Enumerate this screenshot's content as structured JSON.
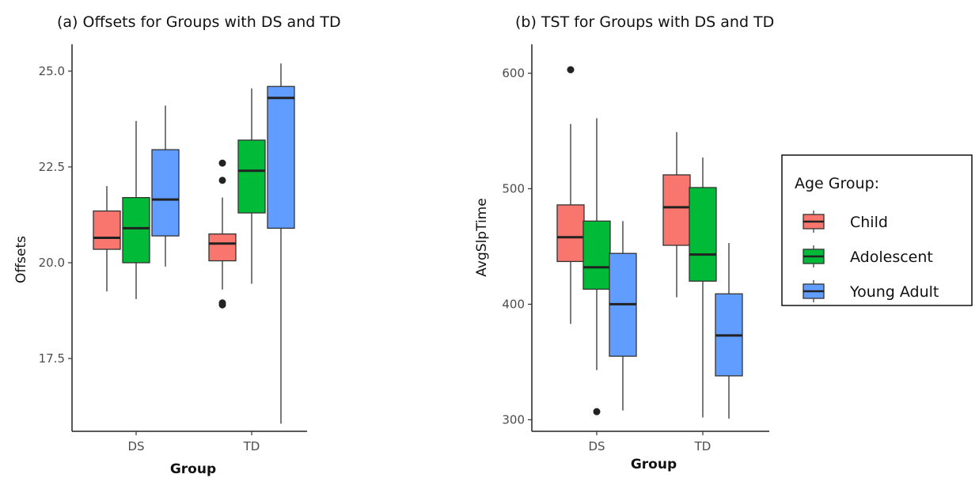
{
  "legend": {
    "title": "Age Group:",
    "entries": [
      {
        "name": "Child",
        "color": "#f8766d"
      },
      {
        "name": "Adolescent",
        "color": "#00ba38"
      },
      {
        "name": "Young Adult",
        "color": "#619cff"
      }
    ]
  },
  "chart_data": [
    {
      "type": "boxplot",
      "title": "(a) Offsets for Groups with DS and TD",
      "xlabel": "Group",
      "ylabel": "Offsets",
      "categories": [
        "DS",
        "TD"
      ],
      "ylim": [
        15.6,
        25.7
      ],
      "yticks": [
        17.5,
        20.0,
        22.5,
        25.0
      ],
      "ytick_labels": [
        "17.5",
        "20.0",
        "22.5",
        "25.0"
      ],
      "series": [
        {
          "name": "Child",
          "boxes": [
            {
              "category": "DS",
              "min": 19.25,
              "q1": 20.35,
              "median": 20.65,
              "q3": 21.35,
              "max": 22.0,
              "outliers": []
            },
            {
              "category": "TD",
              "min": 19.3,
              "q1": 20.05,
              "median": 20.5,
              "q3": 20.75,
              "max": 21.7,
              "outliers": [
                22.6,
                22.15,
                18.95,
                18.9
              ]
            }
          ]
        },
        {
          "name": "Adolescent",
          "boxes": [
            {
              "category": "DS",
              "min": 19.05,
              "q1": 20.0,
              "median": 20.9,
              "q3": 21.7,
              "max": 23.7,
              "outliers": []
            },
            {
              "category": "TD",
              "min": 19.45,
              "q1": 21.3,
              "median": 22.4,
              "q3": 23.2,
              "max": 24.55,
              "outliers": []
            }
          ]
        },
        {
          "name": "Young Adult",
          "boxes": [
            {
              "category": "DS",
              "min": 19.9,
              "q1": 20.7,
              "median": 21.65,
              "q3": 22.95,
              "max": 24.1,
              "outliers": []
            },
            {
              "category": "TD",
              "min": 15.8,
              "q1": 20.9,
              "median": 24.3,
              "q3": 24.6,
              "max": 25.2,
              "outliers": []
            }
          ]
        }
      ]
    },
    {
      "type": "boxplot",
      "title": "(b) TST for Groups with DS and TD",
      "xlabel": "Group",
      "ylabel": "AvgSlpTime",
      "categories": [
        "DS",
        "TD"
      ],
      "ylim": [
        290,
        625
      ],
      "yticks": [
        300,
        400,
        500,
        600
      ],
      "ytick_labels": [
        "300",
        "400",
        "500",
        "600"
      ],
      "series": [
        {
          "name": "Child",
          "boxes": [
            {
              "category": "DS",
              "min": 383,
              "q1": 437,
              "median": 458,
              "q3": 486,
              "max": 556,
              "outliers": [
                603
              ]
            },
            {
              "category": "TD",
              "min": 406,
              "q1": 451,
              "median": 484,
              "q3": 512,
              "max": 549,
              "outliers": []
            }
          ]
        },
        {
          "name": "Adolescent",
          "boxes": [
            {
              "category": "DS",
              "min": 343,
              "q1": 413,
              "median": 432,
              "q3": 472,
              "max": 561,
              "outliers": [
                307
              ]
            },
            {
              "category": "TD",
              "min": 302,
              "q1": 420,
              "median": 443,
              "q3": 501,
              "max": 527,
              "outliers": []
            }
          ]
        },
        {
          "name": "Young Adult",
          "boxes": [
            {
              "category": "DS",
              "min": 308,
              "q1": 355,
              "median": 400,
              "q3": 444,
              "max": 472,
              "outliers": []
            },
            {
              "category": "TD",
              "min": 301,
              "q1": 338,
              "median": 373,
              "q3": 409,
              "max": 453,
              "outliers": []
            }
          ]
        }
      ]
    }
  ]
}
